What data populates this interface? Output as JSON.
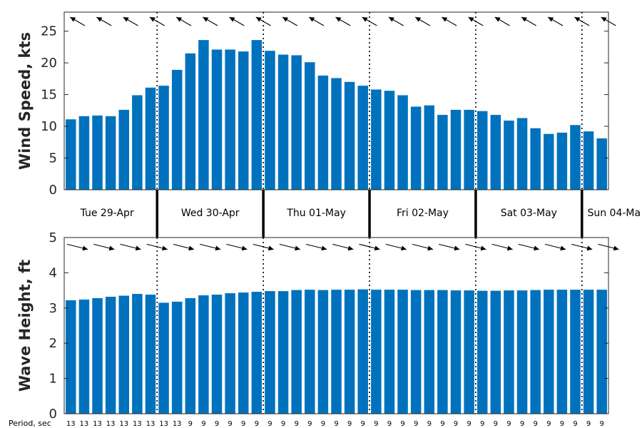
{
  "chart_data": [
    {
      "type": "bar",
      "ylabel": "Wind Speed, kts",
      "ylim": [
        0,
        28
      ],
      "yticks": [
        0,
        5,
        10,
        15,
        20,
        25
      ],
      "bar_color": "#0072BD",
      "values": [
        11.1,
        11.6,
        11.7,
        11.6,
        12.6,
        14.9,
        16.1,
        16.4,
        18.9,
        21.5,
        23.6,
        22.1,
        22.1,
        21.8,
        23.6,
        21.9,
        21.3,
        21.2,
        20.1,
        18.0,
        17.6,
        17.0,
        16.4,
        15.8,
        15.6,
        14.9,
        13.1,
        13.3,
        11.8,
        12.6,
        12.6,
        12.4,
        11.8,
        10.9,
        11.3,
        9.7,
        8.8,
        9.0,
        10.2,
        9.2,
        8.1
      ],
      "direction_arrows": "arrows point toward northwest (wind direction)"
    },
    {
      "type": "bar",
      "ylabel": "Wave Height, ft",
      "ylim": [
        0,
        5
      ],
      "yticks": [
        0,
        1,
        2,
        3,
        4,
        5
      ],
      "bar_color": "#0072BD",
      "values": [
        3.22,
        3.24,
        3.28,
        3.32,
        3.35,
        3.4,
        3.38,
        3.15,
        3.18,
        3.28,
        3.36,
        3.38,
        3.42,
        3.44,
        3.46,
        3.48,
        3.48,
        3.51,
        3.52,
        3.51,
        3.52,
        3.52,
        3.53,
        3.52,
        3.52,
        3.52,
        3.51,
        3.51,
        3.51,
        3.5,
        3.5,
        3.49,
        3.49,
        3.5,
        3.5,
        3.51,
        3.52,
        3.52,
        3.52,
        3.52,
        3.52
      ],
      "period_label": "Period, sec",
      "periods": [
        13,
        13,
        13,
        13,
        13,
        13,
        13,
        13,
        13,
        9,
        9,
        9,
        9,
        9,
        9,
        9,
        9,
        9,
        9,
        9,
        9,
        9,
        9,
        9,
        9,
        9,
        9,
        9,
        9,
        9,
        9,
        9,
        9,
        9,
        9,
        9,
        9,
        9,
        9,
        9,
        9
      ],
      "direction_arrows": "arrows point toward east-southeast (wave direction)"
    }
  ],
  "days": [
    "Tue 29-Apr",
    "Wed 30-Apr",
    "Thu 01-May",
    "Fri 02-May",
    "Sat 03-May",
    "Sun 04-Ma"
  ],
  "day_boundaries_after_index": [
    6,
    14,
    22,
    30,
    38
  ]
}
